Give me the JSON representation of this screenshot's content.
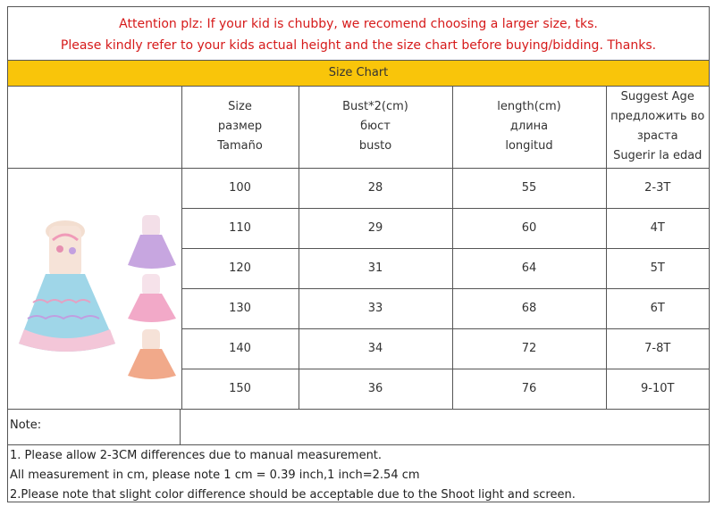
{
  "notice": {
    "line1": "Attention plz: If your kid is chubby, we recomend choosing a larger size, tks.",
    "line2": "Please kindly refer to your kids actual height and the size chart before buying/bidding. Thanks.",
    "color": "#d61a1a"
  },
  "title_bar": {
    "label": "Size Chart",
    "color": "#f9c50a"
  },
  "headers": [
    [
      "Size",
      "размер",
      "Tamaño"
    ],
    [
      "Bust*2(cm)",
      "бюст",
      "busto"
    ],
    [
      "length(cm)",
      "длина",
      "longitud"
    ],
    [
      "Suggest Age",
      "предложить во",
      "зраста",
      "Sugerir la edad"
    ]
  ],
  "rows": [
    [
      "100",
      "28",
      "55",
      "2-3T"
    ],
    [
      "110",
      "29",
      "60",
      "4T"
    ],
    [
      "120",
      "31",
      "64",
      "5T"
    ],
    [
      "130",
      "33",
      "68",
      "6T"
    ],
    [
      "140",
      "34",
      "72",
      "7-8T"
    ],
    [
      "150",
      "36",
      "76",
      "9-10T"
    ]
  ],
  "product_image": {
    "icon": "dress-photo",
    "colors": {
      "main": "#9fd6e8",
      "purple": "#c7a6e0",
      "pink": "#f2a9c8",
      "peach": "#f1a98a"
    }
  },
  "note_label": "Note:",
  "footer": [
    "1. Please allow 2-3CM differences due to manual measurement.",
    "All measurement in cm, please note 1 cm = 0.39 inch,1 inch=2.54 cm",
    "2.Please note that slight color difference should be acceptable due to the Shoot light and screen."
  ]
}
